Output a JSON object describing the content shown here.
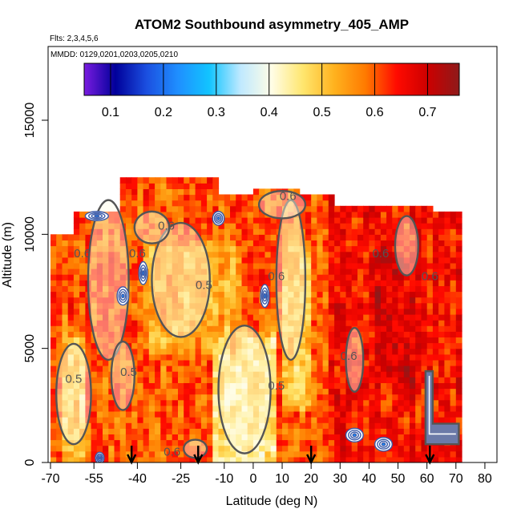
{
  "chart_data": {
    "type": "heatmap",
    "title": "ATOM2 Southbound asymmetry_405_AMP",
    "flights_label": "Flts: 2,3,4,5,6",
    "dates_label": "MMDD: 0129,0201,0203,0205,0210",
    "xlabel": "Latitude (deg N)",
    "ylabel": "Altitude (m)",
    "xlim": [
      -70,
      85
    ],
    "ylim": [
      0,
      17000
    ],
    "x_ticks": [
      -70,
      -55,
      -40,
      -25,
      -10,
      0,
      10,
      20,
      30,
      40,
      50,
      60,
      70,
      80
    ],
    "x_tick_labels": [
      "-70",
      "-55",
      "-40",
      "-25",
      "-10",
      "0",
      "10",
      "20",
      "30",
      "40",
      "50",
      "60",
      "70",
      "80"
    ],
    "y_ticks": [
      0,
      5000,
      10000,
      15000
    ],
    "y_tick_labels": [
      "0",
      "5000",
      "10000",
      "15000"
    ],
    "colorbar": {
      "range": [
        0.05,
        0.76
      ],
      "ticks": [
        0.1,
        0.2,
        0.3,
        0.4,
        0.5,
        0.6,
        0.7
      ],
      "tick_labels": [
        "0.1",
        "0.2",
        "0.3",
        "0.4",
        "0.5",
        "0.6",
        "0.7"
      ],
      "colors": [
        "#7a1ce0",
        "#00009a",
        "#1b4fe0",
        "#1f8fff",
        "#12c4ff",
        "#bfe9ff",
        "#fffde6",
        "#ffe66e",
        "#ffb21e",
        "#ff7a00",
        "#ff0a00",
        "#cc0000",
        "#8e1a1a"
      ]
    },
    "contour_levels_labeled": [
      "0.5",
      "0.6"
    ],
    "contour_labels": [
      {
        "text": "0.6",
        "x": -30,
        "y": 10200
      },
      {
        "text": "0.6",
        "x": 12,
        "y": 11500
      },
      {
        "text": "0.5",
        "x": -17,
        "y": 7600
      },
      {
        "text": "0.6",
        "x": -59,
        "y": 9000
      },
      {
        "text": "0.6",
        "x": -40,
        "y": 9000
      },
      {
        "text": "0.6",
        "x": 8,
        "y": 8000
      },
      {
        "text": "0.5",
        "x": -62,
        "y": 3500
      },
      {
        "text": "0.5",
        "x": -43,
        "y": 3800
      },
      {
        "text": "0.5",
        "x": 8,
        "y": 3200
      },
      {
        "text": "0.6",
        "x": 33,
        "y": 4500
      },
      {
        "text": "0.6",
        "x": 44,
        "y": 9000
      },
      {
        "text": "0.6",
        "x": 61,
        "y": 8000
      },
      {
        "text": "0.6",
        "x": -28,
        "y": 300
      }
    ],
    "profile_arrows_lat": [
      -42,
      -19,
      20,
      61
    ],
    "data_extent": {
      "lat_min": -70,
      "lat_max": 72,
      "alt_min": 0,
      "alt_max": 12500,
      "description_note": "asymmetry field, values ~0.4–0.7"
    },
    "grid": false
  }
}
